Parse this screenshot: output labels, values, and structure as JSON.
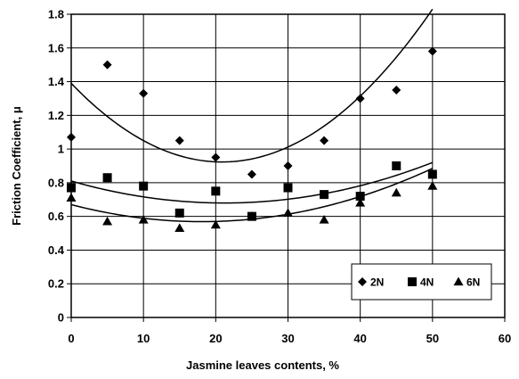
{
  "chart_data": {
    "type": "scatter",
    "xlabel": "Jasmine  leaves contents, %",
    "ylabel": "Friction Coefficient, μ",
    "xlim": [
      0,
      60
    ],
    "ylim": [
      0,
      1.8
    ],
    "x_ticks": [
      "0",
      "10",
      "20",
      "30",
      "40",
      "50",
      "60"
    ],
    "y_ticks": [
      "0",
      "0.2",
      "0.4",
      "0.6",
      "0.8",
      "1",
      "1.2",
      "1.4",
      "1.6",
      "1.8"
    ],
    "grid": true,
    "legend_position": "bottom-right",
    "trendline": "polynomial",
    "series": [
      {
        "name": "2N",
        "marker": "diamond",
        "x": [
          0,
          5,
          10,
          15,
          20,
          25,
          30,
          35,
          40,
          45,
          50
        ],
        "y": [
          1.07,
          1.5,
          1.33,
          1.05,
          0.95,
          0.85,
          0.9,
          1.05,
          1.3,
          1.35,
          1.58
        ],
        "trend": [
          1.39,
          -0.0447,
          0.00107
        ]
      },
      {
        "name": "4N",
        "marker": "square",
        "x": [
          0,
          5,
          10,
          15,
          20,
          25,
          30,
          35,
          40,
          45,
          50
        ],
        "y": [
          0.77,
          0.83,
          0.78,
          0.62,
          0.75,
          0.6,
          0.77,
          0.73,
          0.72,
          0.9,
          0.85
        ],
        "trend": [
          0.81,
          -0.0123,
          0.00029
        ]
      },
      {
        "name": "6N",
        "marker": "triangle",
        "x": [
          0,
          5,
          10,
          15,
          20,
          25,
          30,
          35,
          40,
          45,
          50
        ],
        "y": [
          0.71,
          0.57,
          0.58,
          0.53,
          0.55,
          0.6,
          0.62,
          0.58,
          0.68,
          0.74,
          0.78
        ],
        "trend": [
          0.67,
          -0.0112,
          0.00031
        ]
      }
    ]
  }
}
